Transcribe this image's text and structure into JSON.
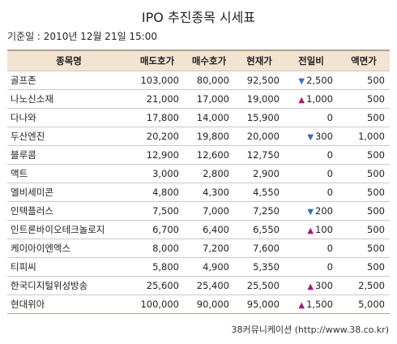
{
  "title": "IPO 추진종목 시세표",
  "base_date": "기준일 : 2010년 12월 21일 15:00",
  "colors": {
    "header_bg": "#f3e4d1",
    "up": "#b0157a",
    "down": "#2f6fc0"
  },
  "headers": [
    "종목명",
    "매도호가",
    "매수호가",
    "현재가",
    "전일비",
    "액면가"
  ],
  "rows": [
    {
      "name": "골프존",
      "ask": "103,000",
      "bid": "80,000",
      "price": "92,500",
      "dir": "down",
      "change": "2,500",
      "par": "500"
    },
    {
      "name": "나노신소재",
      "ask": "21,000",
      "bid": "17,000",
      "price": "19,000",
      "dir": "up",
      "change": "1,000",
      "par": "500"
    },
    {
      "name": "다나와",
      "ask": "17,800",
      "bid": "14,000",
      "price": "15,900",
      "dir": "none",
      "change": "0",
      "par": "500"
    },
    {
      "name": "두산엔진",
      "ask": "20,200",
      "bid": "19,800",
      "price": "20,000",
      "dir": "down",
      "change": "300",
      "par": "1,000"
    },
    {
      "name": "블루콤",
      "ask": "12,900",
      "bid": "12,600",
      "price": "12,750",
      "dir": "none",
      "change": "0",
      "par": "500"
    },
    {
      "name": "액트",
      "ask": "3,000",
      "bid": "2,800",
      "price": "2,900",
      "dir": "none",
      "change": "0",
      "par": "500"
    },
    {
      "name": "엘비세미콘",
      "ask": "4,800",
      "bid": "4,300",
      "price": "4,550",
      "dir": "none",
      "change": "0",
      "par": "500"
    },
    {
      "name": "인텍플러스",
      "ask": "7,500",
      "bid": "7,000",
      "price": "7,250",
      "dir": "down",
      "change": "200",
      "par": "500"
    },
    {
      "name": "인트론바이오테크놀로지",
      "ask": "6,700",
      "bid": "6,400",
      "price": "6,550",
      "dir": "up",
      "change": "100",
      "par": "500"
    },
    {
      "name": "케이아이엔엑스",
      "ask": "8,000",
      "bid": "7,200",
      "price": "7,600",
      "dir": "none",
      "change": "0",
      "par": "500"
    },
    {
      "name": "티피씨",
      "ask": "5,800",
      "bid": "4,900",
      "price": "5,350",
      "dir": "none",
      "change": "0",
      "par": "500"
    },
    {
      "name": "한국디지털위성방송",
      "ask": "25,600",
      "bid": "25,400",
      "price": "25,500",
      "dir": "up",
      "change": "300",
      "par": "2,500"
    },
    {
      "name": "현대위아",
      "ask": "100,000",
      "bid": "90,000",
      "price": "95,000",
      "dir": "up",
      "change": "1,500",
      "par": "5,000"
    }
  ],
  "footer": "38커뮤니케이션 (http://www.38.co.kr)"
}
